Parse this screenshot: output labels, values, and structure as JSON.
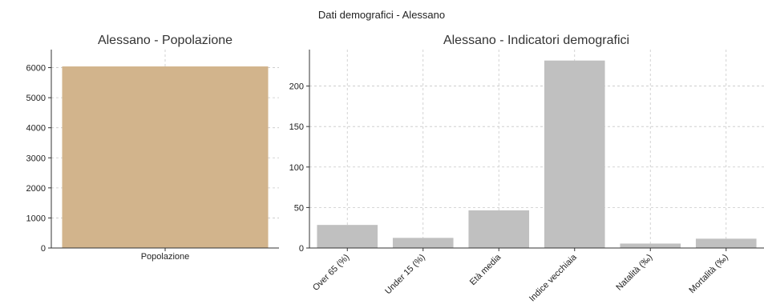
{
  "figure": {
    "title": "Dati demografici - Alessano"
  },
  "chart_data": [
    {
      "type": "bar",
      "title": "Alessano - Popolazione",
      "categories": [
        "Popolazione"
      ],
      "values": [
        6040
      ],
      "ylim": [
        0,
        6600
      ],
      "yticks": [
        0,
        1000,
        2000,
        3000,
        4000,
        5000,
        6000
      ],
      "ytick_labels": [
        "0",
        "1000",
        "2000",
        "3000",
        "4000",
        "5000",
        "6000"
      ],
      "grid": true,
      "color": "#d2b48c"
    },
    {
      "type": "bar",
      "title": "Alessano - Indicatori demografici",
      "categories": [
        "Over 65 (%)",
        "Under 15 (%)",
        "Età media",
        "Indice vecchiaia",
        "Natalità (‰)",
        "Mortalità (‰)"
      ],
      "values": [
        28.5,
        12.5,
        46.5,
        231.5,
        5.5,
        11.5
      ],
      "ylim": [
        0,
        245
      ],
      "yticks": [
        0,
        50,
        100,
        150,
        200
      ],
      "ytick_labels": [
        "0",
        "50",
        "100",
        "150",
        "200"
      ],
      "grid": true,
      "color": "#c0c0c0"
    }
  ]
}
